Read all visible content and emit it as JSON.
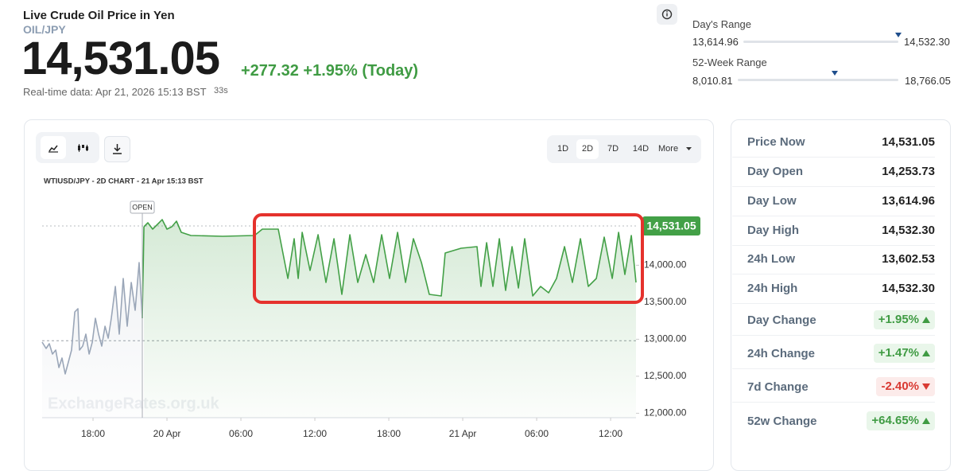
{
  "header": {
    "title": "Live Crude Oil Price in Yen",
    "symbol": "OIL/JPY",
    "price": "14,531.05",
    "change": "+277.32 +1.95% (Today)",
    "timestamp": "Real-time data: Apr 21, 2026 15:13 BST",
    "refresh": "33s"
  },
  "ranges": [
    {
      "label": "Day's Range",
      "low": "13,614.96",
      "high": "14,532.30"
    },
    {
      "label": "52-Week Range",
      "low": "8,010.81",
      "high": "18,766.05"
    }
  ],
  "toolbar": {
    "periods": [
      "1D",
      "2D",
      "7D",
      "14D",
      "More"
    ],
    "active": 1
  },
  "stats": [
    {
      "label": "Price Now",
      "value": "14,531.05"
    },
    {
      "label": "Day Open",
      "value": "14,253.73"
    },
    {
      "label": "Day Low",
      "value": "13,614.96"
    },
    {
      "label": "Day High",
      "value": "14,532.30"
    },
    {
      "label": "24h Low",
      "value": "13,602.53"
    },
    {
      "label": "24h High",
      "value": "14,532.30"
    }
  ],
  "changes": [
    {
      "label": "Day Change",
      "value": "+1.95%"
    },
    {
      "label": "24h Change",
      "value": "+1.47%"
    },
    {
      "label": "7d Change",
      "value": "-2.40%"
    },
    {
      "label": "52w Change",
      "value": "+64.65%"
    }
  ],
  "chart_data": {
    "type": "line",
    "title": "WTIUSD/JPY - 2D CHART - 21 Apr 15:13 BST",
    "watermark": "ExchangeRates.org.uk",
    "x": [
      13.87,
      14.19,
      14.45,
      14.71,
      14.97,
      15.23,
      15.48,
      15.74,
      16.0,
      16.26,
      16.52,
      16.77,
      16.9,
      17.16,
      17.42,
      17.68,
      17.94,
      18.19,
      18.45,
      18.71,
      18.97,
      19.23,
      19.48,
      19.81,
      20.13,
      20.45,
      20.77,
      21.1,
      21.42,
      21.74,
      22.0,
      22.13,
      22.45,
      22.84,
      23.23,
      23.61,
      24.0,
      24.39,
      24.77,
      25.16,
      25.94,
      28.52,
      31.1,
      31.74,
      33.03,
      33.81,
      34.32,
      34.65,
      34.97,
      35.61,
      36.26,
      36.9,
      37.55,
      38.19,
      38.84,
      39.48,
      40.13,
      40.77,
      41.42,
      42.06,
      42.71,
      43.36,
      44.0,
      44.65,
      45.29,
      46.26,
      46.58,
      47.87,
      49.16,
      49.48,
      49.94,
      50.45,
      50.97,
      51.48,
      52.0,
      52.52,
      53.03,
      53.68,
      54.32,
      54.97,
      55.61,
      56.26,
      56.9,
      57.55,
      58.19,
      58.84,
      59.48,
      60.13,
      60.65,
      61.16,
      61.68,
      62.06
    ],
    "values": [
      12961,
      12875,
      12940,
      12800,
      12854,
      12617,
      12746,
      12531,
      12693,
      12854,
      13370,
      13413,
      12854,
      12908,
      13069,
      12800,
      12961,
      13284,
      13069,
      12908,
      13176,
      13015,
      13284,
      13714,
      13069,
      13821,
      13176,
      13768,
      13391,
      14036,
      13284,
      14520,
      14574,
      14488,
      14552,
      14617,
      14488,
      14520,
      14595,
      14445,
      14402,
      14391,
      14402,
      14488,
      14488,
      13821,
      14359,
      13821,
      14445,
      13929,
      14413,
      13768,
      14359,
      13606,
      14413,
      13768,
      14144,
      13768,
      14413,
      13821,
      14445,
      13768,
      14359,
      14036,
      13606,
      13585,
      14165,
      14230,
      14251,
      13714,
      14305,
      13714,
      14359,
      13660,
      14251,
      13692,
      14359,
      13585,
      13714,
      13628,
      13821,
      14251,
      13768,
      14359,
      13714,
      13821,
      14380,
      13821,
      14445,
      13875,
      14402,
      13768
    ],
    "color": "#43a047",
    "pre_open_color": "#9aa6b8",
    "label_color": "#43a047",
    "open_marker": {
      "label": "OPEN",
      "x": 22.0
    },
    "prev_close": 12980,
    "xlim": [
      13.87,
      62.06
    ],
    "xticks": [
      {
        "value": 18,
        "label": "18:00"
      },
      {
        "value": 24,
        "label": "20 Apr"
      },
      {
        "value": 30,
        "label": "06:00"
      },
      {
        "value": 36,
        "label": "12:00"
      },
      {
        "value": 42,
        "label": "18:00"
      },
      {
        "value": 48,
        "label": "21 Apr"
      },
      {
        "value": 54,
        "label": "06:00"
      },
      {
        "value": 60,
        "label": "12:00"
      }
    ],
    "ylim": [
      11940,
      14950
    ],
    "yticks": [
      {
        "value": 12000,
        "label": "12,000.00"
      },
      {
        "value": 12500,
        "label": "12,500.00"
      },
      {
        "value": 13000,
        "label": "13,000.00"
      },
      {
        "value": 13500,
        "label": "13,500.00"
      },
      {
        "value": 14000,
        "label": "14,000.00"
      }
    ]
  }
}
